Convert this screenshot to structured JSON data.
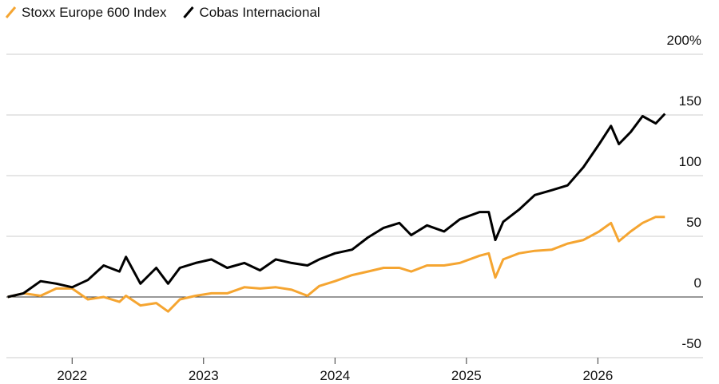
{
  "chart_data": {
    "type": "line",
    "x": [
      2021.51,
      2021.63,
      2021.76,
      2021.88,
      2022.0,
      2022.12,
      2022.24,
      2022.36,
      2022.41,
      2022.52,
      2022.64,
      2022.73,
      2022.82,
      2022.94,
      2023.06,
      2023.18,
      2023.31,
      2023.43,
      2023.55,
      2023.67,
      2023.79,
      2023.88,
      2024.0,
      2024.13,
      2024.25,
      2024.37,
      2024.49,
      2024.58,
      2024.7,
      2024.83,
      2024.95,
      2025.1,
      2025.17,
      2025.22,
      2025.28,
      2025.4,
      2025.52,
      2025.65,
      2025.77,
      2025.89,
      2026.01,
      2026.1,
      2026.16,
      2026.25,
      2026.34,
      2026.44,
      2026.51
    ],
    "series": [
      {
        "name": "Stoxx Europe 600 Index",
        "color": "#f5a531",
        "values": [
          0,
          3,
          1,
          7,
          7,
          -2,
          0,
          -4,
          1,
          -7,
          -5,
          -12,
          -2,
          1,
          3,
          3,
          8,
          7,
          8,
          6,
          1,
          9,
          13,
          18,
          21,
          24,
          24,
          21,
          26,
          26,
          28,
          34,
          36,
          16,
          31,
          36,
          38,
          39,
          44,
          47,
          54,
          61,
          46,
          54,
          61,
          66,
          66
        ]
      },
      {
        "name": "Cobas Internacional",
        "color": "#000000",
        "values": [
          0,
          3,
          13,
          11,
          8,
          14,
          26,
          21,
          33,
          11,
          24,
          11,
          24,
          28,
          31,
          24,
          28,
          22,
          31,
          28,
          26,
          31,
          36,
          39,
          49,
          57,
          61,
          51,
          59,
          54,
          64,
          70,
          70,
          47,
          62,
          72,
          84,
          88,
          92,
          107,
          126,
          141,
          126,
          136,
          149,
          143,
          151
        ]
      }
    ],
    "xlim": [
      2021.5,
      2026.8
    ],
    "xticks": [
      2022,
      2023,
      2024,
      2025,
      2026
    ],
    "ylim": [
      -50,
      200
    ],
    "yticks": [
      {
        "value": 200,
        "label": "200%"
      },
      150,
      100,
      50,
      0,
      -50
    ],
    "grid": true
  }
}
